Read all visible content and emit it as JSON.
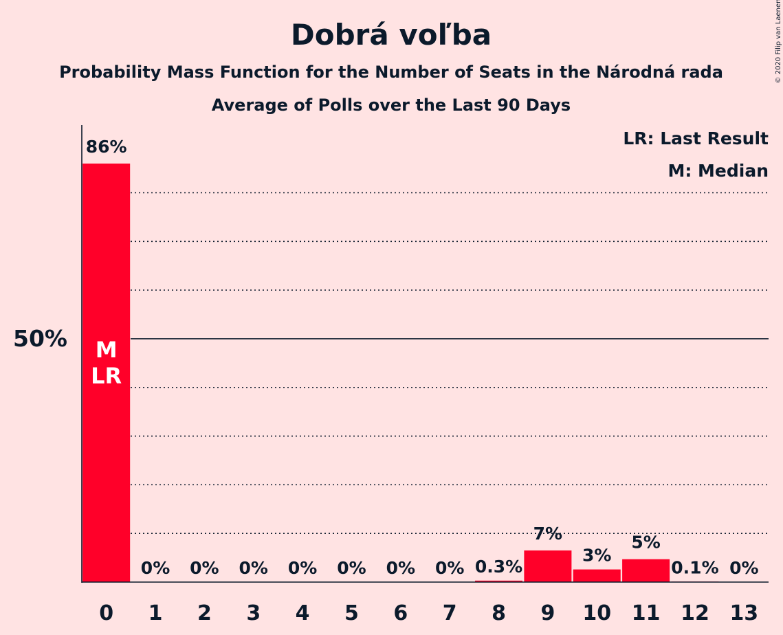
{
  "chart_data": {
    "type": "bar",
    "title": "Dobrá voľba",
    "subtitle": "Probability Mass Function for the Number of Seats in the Národná rada",
    "subtitle2": "Average of Polls over the Last 90 Days",
    "copyright": "© 2020 Filip van Laenen",
    "legend": [
      "LR: Last Result",
      "M: Median"
    ],
    "categories": [
      "0",
      "1",
      "2",
      "3",
      "4",
      "5",
      "6",
      "7",
      "8",
      "9",
      "10",
      "11",
      "12",
      "13"
    ],
    "values": [
      86,
      0,
      0,
      0,
      0,
      0,
      0,
      0,
      0.3,
      6.5,
      2.6,
      4.7,
      0.1,
      0
    ],
    "value_labels": [
      "86%",
      "0%",
      "0%",
      "0%",
      "0%",
      "0%",
      "0%",
      "0%",
      "0.3%",
      "7%",
      "3%",
      "5%",
      "0.1%",
      "0%"
    ],
    "bar_annotation": {
      "index": 0,
      "lines": [
        "M",
        "LR"
      ]
    },
    "y_tick_label": "50%",
    "y_tick_value": 50,
    "ylim": [
      0,
      94
    ],
    "gridlines": [
      10,
      20,
      30,
      40,
      60,
      70,
      80
    ],
    "colors": {
      "bar": "#ff0029",
      "background": "#ffe3e3",
      "text": "#0b1a2b"
    }
  }
}
